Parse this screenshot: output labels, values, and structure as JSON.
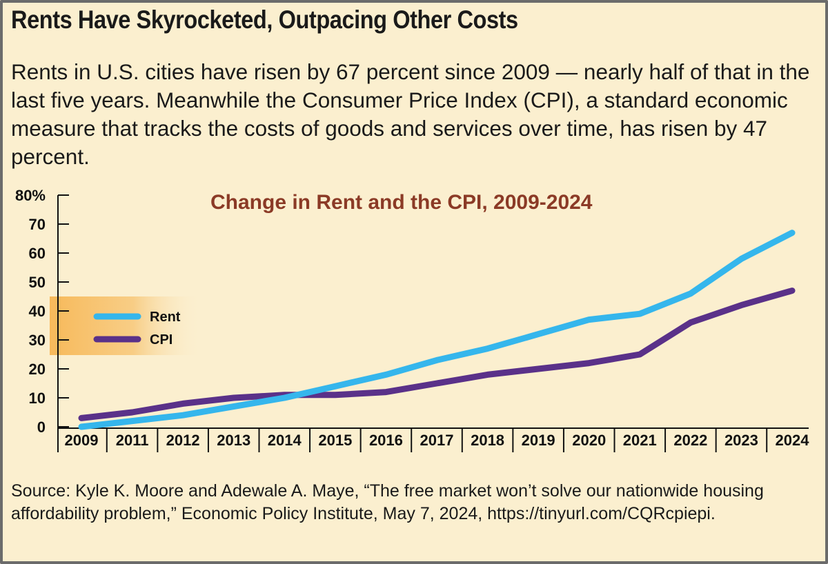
{
  "header": {
    "title": "Rents Have Skyrocketed, Outpacing Other Costs",
    "intro": "Rents in U.S. cities have risen by 67 percent since 2009 — nearly half of that in the last five years. Meanwhile the Consumer Price Index (CPI), a standard economic measure that tracks the costs of goods and services over time, has risen by 47 percent."
  },
  "footer": {
    "source": "Source: Kyle K. Moore and Adewale A. Maye, “The free market won’t solve our nationwide housing affordability problem,” Economic Policy Institute, May 7, 2024, https://tinyurl.com/CQRcpiepi."
  },
  "chart_data": {
    "type": "line",
    "title": "Change in Rent and the CPI, 2009-2024",
    "categories": [
      "2009",
      "2011",
      "2012",
      "2013",
      "2014",
      "2015",
      "2016",
      "2017",
      "2018",
      "2019",
      "2020",
      "2021",
      "2022",
      "2023",
      "2024"
    ],
    "y_ticks": [
      "0",
      "10",
      "20",
      "30",
      "40",
      "50",
      "60",
      "70",
      "80%"
    ],
    "ylim": [
      0,
      80
    ],
    "series": [
      {
        "name": "Rent",
        "color": "#35b6ec",
        "values": [
          0,
          2,
          4,
          7,
          10,
          14,
          18,
          23,
          27,
          32,
          37,
          39,
          46,
          58,
          67
        ]
      },
      {
        "name": "CPI",
        "color": "#5a3189",
        "values": [
          3,
          5,
          8,
          10,
          11,
          11,
          12,
          15,
          18,
          20,
          22,
          25,
          36,
          42,
          47
        ]
      }
    ],
    "legend_position": "left",
    "colors": {
      "legend_band": "#f7b95a",
      "axis": "#111111",
      "title": "#8b3a26"
    }
  }
}
